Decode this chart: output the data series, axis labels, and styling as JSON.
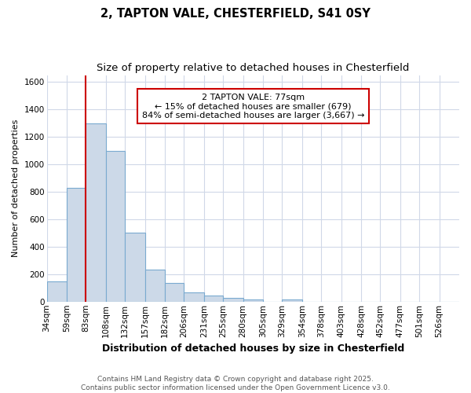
{
  "title": "2, TAPTON VALE, CHESTERFIELD, S41 0SY",
  "subtitle": "Size of property relative to detached houses in Chesterfield",
  "xlabel": "Distribution of detached houses by size in Chesterfield",
  "ylabel": "Number of detached properties",
  "categories": [
    "34sqm",
    "59sqm",
    "83sqm",
    "108sqm",
    "132sqm",
    "157sqm",
    "182sqm",
    "206sqm",
    "231sqm",
    "255sqm",
    "280sqm",
    "305sqm",
    "329sqm",
    "354sqm",
    "378sqm",
    "403sqm",
    "428sqm",
    "452sqm",
    "477sqm",
    "501sqm",
    "526sqm"
  ],
  "bin_left_edges": [
    34,
    59,
    83,
    108,
    132,
    157,
    182,
    206,
    231,
    255,
    280,
    305,
    329,
    354,
    378,
    403,
    428,
    452,
    477,
    501,
    526
  ],
  "values": [
    150,
    830,
    1300,
    1100,
    500,
    235,
    135,
    70,
    45,
    25,
    15,
    0,
    15,
    0,
    0,
    0,
    0,
    0,
    0,
    0,
    0
  ],
  "bar_color": "#ccd9e8",
  "bar_edge_color": "#7aaad0",
  "background_color": "#ffffff",
  "grid_color": "#d0d8e8",
  "red_line_x": 83,
  "annotation_text": "2 TAPTON VALE: 77sqm\n← 15% of detached houses are smaller (679)\n84% of semi-detached houses are larger (3,667) →",
  "annotation_box_color": "#ffffff",
  "annotation_box_edge_color": "#cc0000",
  "ylim": [
    0,
    1650
  ],
  "yticks": [
    0,
    200,
    400,
    600,
    800,
    1000,
    1200,
    1400,
    1600
  ],
  "footer_text": "Contains HM Land Registry data © Crown copyright and database right 2025.\nContains public sector information licensed under the Open Government Licence v3.0.",
  "title_fontsize": 10.5,
  "subtitle_fontsize": 9.5,
  "xlabel_fontsize": 9,
  "ylabel_fontsize": 8,
  "tick_fontsize": 7.5,
  "annotation_fontsize": 8,
  "footer_fontsize": 6.5
}
